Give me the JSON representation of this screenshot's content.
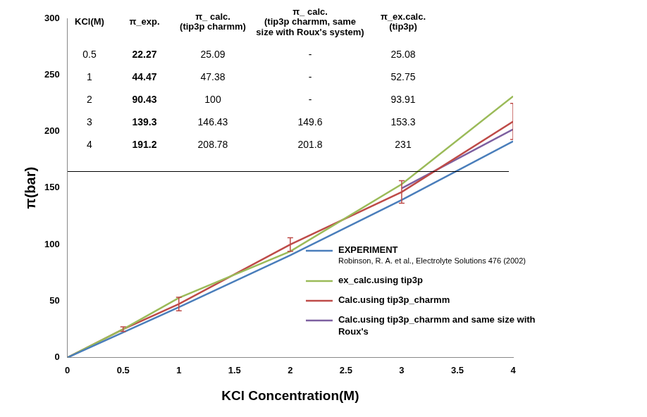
{
  "chart_data": {
    "type": "line",
    "xlabel": "KCl Concentration(M)",
    "ylabel": "π(bar)",
    "x": [
      0,
      0.5,
      1,
      2,
      3,
      4
    ],
    "series": [
      {
        "name": "EXPERIMENT",
        "color": "#4a7ebb",
        "values": [
          0,
          22.27,
          44.47,
          90.43,
          139.3,
          191.2
        ]
      },
      {
        "name": "ex_calc.using tip3p",
        "color": "#9bbb59",
        "values": [
          0,
          25.08,
          52.75,
          93.91,
          153.3,
          231
        ]
      },
      {
        "name": "Calc.using tip3p_charmm",
        "color": "#be4b48",
        "values": [
          0,
          25.09,
          47.38,
          100,
          146.43,
          208.78
        ],
        "error": [
          null,
          2,
          6,
          6,
          10,
          16
        ]
      },
      {
        "name": "Calc.using tip3p_charmm and same size with Roux's",
        "color": "#7d60a0",
        "values": [
          null,
          null,
          null,
          null,
          149.6,
          201.8
        ]
      }
    ],
    "xlim": [
      0,
      4
    ],
    "xticks": [
      0,
      0.5,
      1,
      1.5,
      2,
      2.5,
      3,
      3.5,
      4
    ],
    "ylim": [
      0,
      300
    ],
    "yticks": [
      0,
      50,
      100,
      150,
      200,
      250,
      300
    ],
    "grid": false,
    "legend": "right",
    "marker": "none",
    "annotations": [
      "Robinson, R. A. et al., Electrolyte Solutions 476 (2002)"
    ]
  },
  "table": {
    "header": [
      "KCl(M)",
      "π_exp.",
      "π_ calc.\n(tip3p charmm)",
      "π_ calc.\n(tip3p charmm, same\nsize with Roux's system)",
      "π_ex.calc.\n(tip3p)"
    ],
    "rows": [
      [
        "0.5",
        "22.27",
        "25.09",
        "-",
        "25.08"
      ],
      [
        "1",
        "44.47",
        "47.38",
        "-",
        "52.75"
      ],
      [
        "2",
        "90.43",
        "100",
        "-",
        "93.91"
      ],
      [
        "3",
        "139.3",
        "146.43",
        "149.6",
        "153.3"
      ],
      [
        "4",
        "191.2",
        "208.78",
        "201.8",
        "231"
      ]
    ]
  }
}
